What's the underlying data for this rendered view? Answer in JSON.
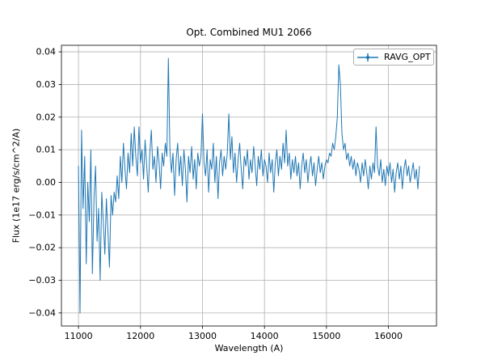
{
  "colors": {
    "line": "#1f77b4",
    "grid": "#b0b0b0",
    "spine": "#000000",
    "text": "#000000",
    "background": "#ffffff",
    "legend_border": "#b0b0b0"
  },
  "chart_data": {
    "type": "line",
    "title": "Opt. Combined MU1 2066",
    "xlabel": "Wavelength (A)",
    "ylabel": "Flux (1e17 erg/s/cm^2/A)",
    "xlim": [
      10725,
      16775
    ],
    "ylim": [
      -0.044,
      0.042
    ],
    "x_ticks": [
      11000,
      12000,
      13000,
      14000,
      15000,
      16000
    ],
    "y_ticks": [
      -0.04,
      -0.03,
      -0.02,
      -0.01,
      0,
      0.01,
      0.02,
      0.03,
      0.04
    ],
    "grid": true,
    "legend": {
      "label": "RAVG_OPT",
      "position": "upper right"
    },
    "series": [
      {
        "name": "RAVG_OPT",
        "color": "#1f77b4",
        "x_start": 11000,
        "x_step": 25,
        "values": [
          0.005,
          -0.04,
          0.016,
          -0.008,
          0.008,
          -0.025,
          0,
          -0.012,
          0.01,
          -0.028,
          -0.005,
          0.005,
          -0.018,
          -0.008,
          -0.03,
          -0.003,
          -0.012,
          -0.022,
          -0.005,
          -0.015,
          -0.026,
          -0.004,
          -0.01,
          -0.003,
          -0.006,
          0.002,
          -0.005,
          0.008,
          0,
          0.012,
          0.004,
          -0.002,
          0.009,
          0.003,
          0.015,
          0.005,
          0.017,
          0.008,
          0.002,
          0.017,
          0.006,
          0.01,
          0.001,
          0.013,
          0.005,
          -0.003,
          0.009,
          0.016,
          0.004,
          0.008,
          0,
          0.011,
          0.006,
          -0.002,
          0.009,
          0.005,
          0.012,
          0.008,
          0.038,
          0.01,
          0.003,
          0.009,
          -0.004,
          0.007,
          0.012,
          0.002,
          0.008,
          -0.001,
          0.01,
          0.004,
          -0.006,
          0.008,
          0.003,
          0.011,
          0.001,
          0.007,
          -0.002,
          0.009,
          0.005,
          0.008,
          0.021,
          0.006,
          0.002,
          0.01,
          -0.003,
          0.007,
          0.004,
          0.012,
          0,
          0.008,
          -0.005,
          0.006,
          0.01,
          0.002,
          0.008,
          0.004,
          0.009,
          0.021,
          0.007,
          0.014,
          0.003,
          0.009,
          0,
          0.007,
          0.012,
          0.004,
          -0.002,
          0.008,
          0.005,
          0.01,
          0.001,
          0.007,
          0.003,
          0.011,
          0.005,
          -0.001,
          0.008,
          0.004,
          0.01,
          0.002,
          0.007,
          0.005,
          0,
          0.009,
          0.003,
          0.007,
          -0.003,
          0.006,
          0.01,
          0.002,
          0.008,
          0.004,
          0.012,
          0.006,
          0.016,
          0.005,
          0.009,
          0.001,
          0.007,
          0.003,
          0.008,
          0.002,
          0.006,
          -0.002,
          0.005,
          0.009,
          0.003,
          0.007,
          0,
          0.005,
          0.008,
          0.002,
          0.006,
          -0.001,
          0.004,
          0.008,
          0.003,
          0.006,
          0.001,
          0.005,
          0.007,
          0.006,
          0.009,
          0.008,
          0.012,
          0.01,
          0.014,
          0.02,
          0.036,
          0.03,
          0.015,
          0.01,
          0.012,
          0.007,
          0.009,
          0.005,
          0.008,
          0.004,
          0.007,
          0.002,
          0.006,
          0.004,
          0,
          0.006,
          0.002,
          0.007,
          0.003,
          -0.002,
          0.005,
          0.001,
          0.006,
          0.003,
          0.017,
          0.005,
          0.002,
          0.007,
          0,
          0.004,
          -0.001,
          0.005,
          0.002,
          0.006,
          0,
          0.004,
          -0.003,
          0.003,
          0.006,
          0.001,
          0.005,
          -0.002,
          0.004,
          0.007,
          0.002,
          0.005,
          0,
          0.003,
          0.006,
          0.001,
          0.004,
          -0.002,
          0.005
        ]
      }
    ]
  }
}
